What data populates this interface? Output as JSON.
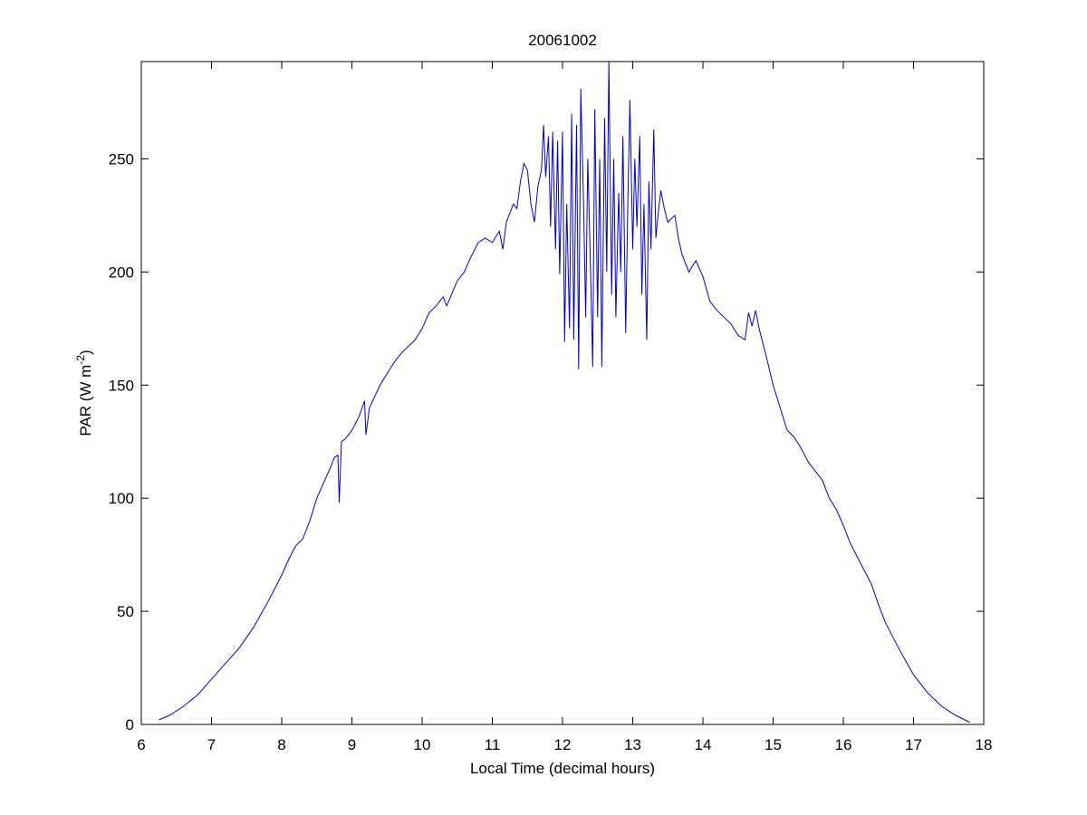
{
  "chart_data": {
    "type": "line",
    "title": "20061002",
    "x_label": "Local Time (decimal hours)",
    "y_label_parts": [
      "PAR (W m",
      "-2",
      ")"
    ],
    "color": "#0000c8",
    "xlim": [
      6,
      18
    ],
    "xticks": [
      6,
      7,
      8,
      9,
      10,
      11,
      12,
      13,
      14,
      15,
      16,
      17,
      18
    ],
    "ylim": [
      0,
      293
    ],
    "yticks": [
      0,
      50,
      100,
      150,
      200,
      250
    ],
    "x": [
      6.25,
      6.4,
      6.6,
      6.8,
      7.0,
      7.2,
      7.4,
      7.6,
      7.8,
      8.0,
      8.1,
      8.2,
      8.3,
      8.4,
      8.5,
      8.6,
      8.7,
      8.75,
      8.8,
      8.82,
      8.85,
      8.9,
      9.0,
      9.1,
      9.18,
      9.2,
      9.25,
      9.4,
      9.5,
      9.6,
      9.7,
      9.8,
      9.9,
      10.0,
      10.1,
      10.2,
      10.3,
      10.35,
      10.5,
      10.6,
      10.7,
      10.8,
      10.9,
      11.0,
      11.1,
      11.15,
      11.2,
      11.3,
      11.35,
      11.4,
      11.45,
      11.5,
      11.55,
      11.6,
      11.65,
      11.7,
      11.73,
      11.76,
      11.8,
      11.83,
      11.86,
      11.9,
      11.93,
      11.96,
      12.0,
      12.03,
      12.06,
      12.1,
      12.13,
      12.16,
      12.2,
      12.23,
      12.26,
      12.3,
      12.33,
      12.36,
      12.4,
      12.43,
      12.46,
      12.5,
      12.53,
      12.56,
      12.6,
      12.63,
      12.66,
      12.7,
      12.73,
      12.76,
      12.8,
      12.83,
      12.86,
      12.9,
      12.93,
      12.96,
      13.0,
      13.03,
      13.06,
      13.1,
      13.13,
      13.16,
      13.2,
      13.23,
      13.26,
      13.3,
      13.33,
      13.36,
      13.4,
      13.45,
      13.5,
      13.6,
      13.65,
      13.7,
      13.8,
      13.9,
      14.0,
      14.1,
      14.2,
      14.3,
      14.4,
      14.5,
      14.6,
      14.65,
      14.7,
      14.75,
      14.8,
      14.9,
      15.0,
      15.1,
      15.2,
      15.3,
      15.4,
      15.5,
      15.6,
      15.7,
      15.8,
      15.9,
      16.0,
      16.1,
      16.2,
      16.3,
      16.4,
      16.5,
      16.6,
      16.8,
      17.0,
      17.2,
      17.4,
      17.6,
      17.8
    ],
    "values": [
      2,
      4,
      8,
      13,
      20,
      27,
      34,
      43,
      54,
      66,
      73,
      79,
      82,
      90,
      100,
      107,
      114,
      118,
      119,
      98,
      125,
      126,
      130,
      136,
      143,
      128,
      140,
      150,
      155,
      160,
      164,
      167,
      170,
      175,
      182,
      185,
      189,
      185,
      196,
      200,
      207,
      213,
      215,
      213,
      218,
      210,
      222,
      230,
      228,
      240,
      248,
      245,
      230,
      222,
      238,
      245,
      265,
      242,
      260,
      220,
      262,
      210,
      258,
      199,
      262,
      169,
      230,
      175,
      270,
      170,
      265,
      157,
      281,
      230,
      180,
      250,
      200,
      158,
      272,
      180,
      250,
      158,
      268,
      200,
      293,
      190,
      250,
      180,
      235,
      200,
      260,
      173,
      230,
      276,
      210,
      250,
      220,
      260,
      190,
      230,
      170,
      240,
      210,
      263,
      215,
      225,
      236,
      228,
      222,
      225,
      215,
      208,
      200,
      205,
      198,
      187,
      183,
      180,
      177,
      172,
      170,
      182,
      176,
      183,
      175,
      163,
      150,
      140,
      130,
      127,
      122,
      116,
      112,
      108,
      100,
      95,
      88,
      80,
      74,
      68,
      62,
      53,
      45,
      33,
      22,
      14,
      8,
      4,
      1
    ]
  }
}
